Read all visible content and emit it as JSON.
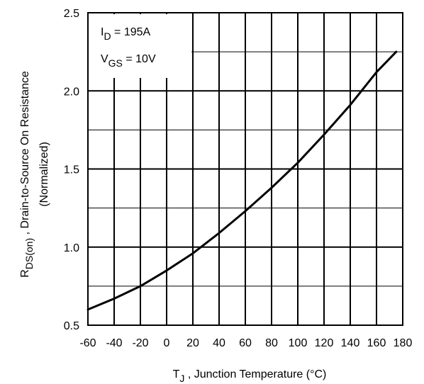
{
  "chart_data": {
    "type": "line",
    "title": "",
    "xlabel": {
      "main": "T",
      "sub": "J",
      "rest": " , Junction Temperature (°C)"
    },
    "ylabel": {
      "main": "R",
      "sub": "DS(on)",
      "rest": " , Drain-to-Source On Resistance",
      "line2": "(Normalized)"
    },
    "xlim": [
      -60,
      180
    ],
    "ylim": [
      0.5,
      2.5
    ],
    "x_ticks": [
      -60,
      -40,
      -20,
      0,
      20,
      40,
      60,
      80,
      100,
      120,
      140,
      160,
      180
    ],
    "y_ticks": [
      0.5,
      1.0,
      1.5,
      2.0,
      2.5
    ],
    "x_tick_labels": [
      "-60",
      "-40",
      "-20",
      "0",
      "20",
      "40",
      "60",
      "80",
      "100",
      "120",
      "140",
      "160",
      "180"
    ],
    "y_tick_labels": [
      "0.5",
      "1.0",
      "1.5",
      "2.0",
      "2.5"
    ],
    "grid": true,
    "annotations": [
      {
        "main": "I",
        "sub": "D",
        "rest": " = 195A"
      },
      {
        "main": "V",
        "sub": "GS",
        "rest": " = 10V"
      }
    ],
    "series": [
      {
        "x": [
          -60,
          -40,
          -20,
          0,
          20,
          40,
          60,
          80,
          100,
          120,
          140,
          160,
          175
        ],
        "y": [
          0.6,
          0.67,
          0.75,
          0.85,
          0.96,
          1.09,
          1.23,
          1.38,
          1.54,
          1.72,
          1.91,
          2.12,
          2.25
        ]
      }
    ]
  }
}
